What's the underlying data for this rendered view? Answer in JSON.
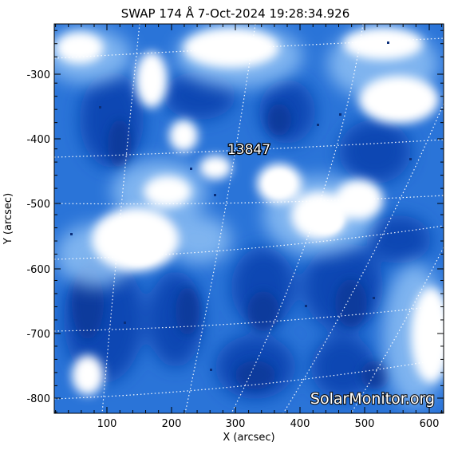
{
  "title": {
    "instrument": "SWAP",
    "wavelength": "174 Å",
    "date": "7-Oct-2024",
    "time": "19:28:34.926"
  },
  "axes": {
    "x_label": "X (arcsec)",
    "y_label": "Y (arcsec)",
    "x_ticks": [
      "100",
      "200",
      "300",
      "400",
      "500",
      "600"
    ],
    "y_ticks": [
      "-300",
      "-400",
      "-500",
      "-600",
      "-700",
      "-800"
    ],
    "x_range": [
      18,
      623
    ],
    "y_range": [
      -822,
      -230
    ]
  },
  "region": {
    "number": "13847"
  },
  "watermark": "SolarMonitor.org",
  "colors": {
    "deep_blue": "#0a3fa8",
    "mid_blue": "#2f7fe0",
    "light_blue": "#9cc8f5",
    "highlight": "#ffffff",
    "grid": "#ffffff"
  }
}
